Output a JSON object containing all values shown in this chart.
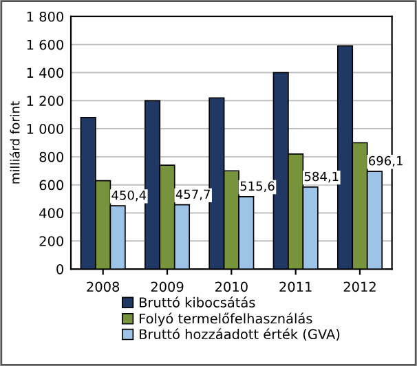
{
  "chart_data": {
    "type": "bar",
    "ylabel": "milliárd forint",
    "categories": [
      "2008",
      "2009",
      "2010",
      "2011",
      "2012"
    ],
    "series": [
      {
        "name": "Bruttó kibocsátás",
        "color": "#1f3864",
        "values": [
          1080,
          1200,
          1220,
          1400,
          1590
        ]
      },
      {
        "name": "Folyó termelőfelhasználás",
        "color": "#77933c",
        "values": [
          630,
          740,
          700,
          820,
          900
        ]
      },
      {
        "name": "Bruttó hozzáadott érték (GVA)",
        "color": "#9dc3e6",
        "values": [
          450.4,
          457.7,
          515.6,
          584.1,
          696.1
        ],
        "value_labels": [
          "450,4",
          "457,7",
          "515,6",
          "584,1",
          "696,1"
        ]
      }
    ],
    "ylim": [
      0,
      1800
    ],
    "yticks": [
      {
        "value": 0,
        "label": "0"
      },
      {
        "value": 200,
        "label": "200"
      },
      {
        "value": 400,
        "label": "400"
      },
      {
        "value": 600,
        "label": "600"
      },
      {
        "value": 800,
        "label": "800"
      },
      {
        "value": 1000,
        "label": "1 000"
      },
      {
        "value": 1200,
        "label": "1 200"
      },
      {
        "value": 1400,
        "label": "1 400"
      },
      {
        "value": 1600,
        "label": "1 600"
      },
      {
        "value": 1800,
        "label": "1 800"
      }
    ],
    "grid": "y",
    "legend": "bottom"
  }
}
